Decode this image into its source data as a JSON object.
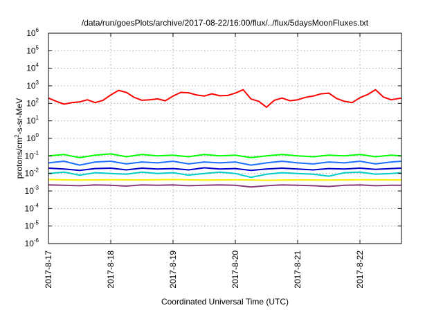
{
  "chart_data": {
    "type": "line",
    "title": "/data/run/goesPlots/archive/2017-08-22/16:00/flux/../flux/5daysMoonFluxes.txt",
    "xlabel": "Coordinated Universal Time (UTC)",
    "ylabel": {
      "prefix": "protons/cm",
      "sup": "2",
      "suffix": "-s-sr-MeV"
    },
    "yscale": "log",
    "ylim": [
      1e-06,
      1000000.0
    ],
    "y_ticks": [
      {
        "base": "10",
        "exp": "-6",
        "value": -6
      },
      {
        "base": "10",
        "exp": "-5",
        "value": -5
      },
      {
        "base": "10",
        "exp": "-4",
        "value": -4
      },
      {
        "base": "10",
        "exp": "-3",
        "value": -3
      },
      {
        "base": "10",
        "exp": "-2",
        "value": -2
      },
      {
        "base": "10",
        "exp": "-1",
        "value": -1
      },
      {
        "base": "10",
        "exp": "0",
        "value": 0
      },
      {
        "base": "10",
        "exp": "1",
        "value": 1
      },
      {
        "base": "10",
        "exp": "2",
        "value": 2
      },
      {
        "base": "10",
        "exp": "3",
        "value": 3
      },
      {
        "base": "10",
        "exp": "4",
        "value": 4
      },
      {
        "base": "10",
        "exp": "5",
        "value": 5
      },
      {
        "base": "10",
        "exp": "6",
        "value": 6
      }
    ],
    "xlim": [
      "2017-08-17T00:00",
      "2017-08-22T16:00"
    ],
    "x_ticks": [
      {
        "label": "2017-8-17",
        "date": "2017-08-17"
      },
      {
        "label": "2017-8-18",
        "date": "2017-08-18"
      },
      {
        "label": "2017-8-19",
        "date": "2017-08-19"
      },
      {
        "label": "2017-8-20",
        "date": "2017-08-20"
      },
      {
        "label": "2017-8-21",
        "date": "2017-08-21"
      },
      {
        "label": "2017-8-22",
        "date": "2017-08-22"
      }
    ],
    "grid": true,
    "series": [
      {
        "color": "#ff0000",
        "x": [
          "2017-08-17T00:00",
          "2017-08-17T03:00",
          "2017-08-17T06:00",
          "2017-08-17T09:00",
          "2017-08-17T12:00",
          "2017-08-17T15:00",
          "2017-08-17T18:00",
          "2017-08-17T21:00",
          "2017-08-18T00:00",
          "2017-08-18T03:00",
          "2017-08-18T06:00",
          "2017-08-18T09:00",
          "2017-08-18T12:00",
          "2017-08-18T15:00",
          "2017-08-18T18:00",
          "2017-08-18T21:00",
          "2017-08-19T00:00",
          "2017-08-19T03:00",
          "2017-08-19T06:00",
          "2017-08-19T09:00",
          "2017-08-19T12:00",
          "2017-08-19T15:00",
          "2017-08-19T18:00",
          "2017-08-19T21:00",
          "2017-08-20T00:00",
          "2017-08-20T03:00",
          "2017-08-20T06:00",
          "2017-08-20T09:00",
          "2017-08-20T12:00",
          "2017-08-20T15:00",
          "2017-08-20T18:00",
          "2017-08-20T21:00",
          "2017-08-21T00:00",
          "2017-08-21T03:00",
          "2017-08-21T06:00",
          "2017-08-21T09:00",
          "2017-08-21T12:00",
          "2017-08-21T15:00",
          "2017-08-21T18:00",
          "2017-08-21T21:00",
          "2017-08-22T00:00",
          "2017-08-22T03:00",
          "2017-08-22T06:00",
          "2017-08-22T09:00",
          "2017-08-22T12:00",
          "2017-08-22T16:00"
        ],
        "values": [
          200,
          130,
          90,
          110,
          120,
          160,
          110,
          150,
          300,
          550,
          420,
          220,
          150,
          160,
          180,
          140,
          260,
          420,
          400,
          300,
          260,
          350,
          270,
          280,
          380,
          600,
          180,
          130,
          60,
          150,
          200,
          140,
          160,
          220,
          260,
          350,
          380,
          190,
          130,
          110,
          210,
          320,
          600,
          230,
          160,
          200
        ]
      },
      {
        "color": "#00ff00",
        "x": [
          "2017-08-17T00:00",
          "2017-08-17T06:00",
          "2017-08-17T12:00",
          "2017-08-17T18:00",
          "2017-08-18T00:00",
          "2017-08-18T06:00",
          "2017-08-18T12:00",
          "2017-08-18T18:00",
          "2017-08-19T00:00",
          "2017-08-19T06:00",
          "2017-08-19T12:00",
          "2017-08-19T18:00",
          "2017-08-20T00:00",
          "2017-08-20T06:00",
          "2017-08-20T12:00",
          "2017-08-20T18:00",
          "2017-08-21T00:00",
          "2017-08-21T06:00",
          "2017-08-21T12:00",
          "2017-08-21T18:00",
          "2017-08-22T00:00",
          "2017-08-22T06:00",
          "2017-08-22T12:00",
          "2017-08-22T16:00"
        ],
        "values": [
          0.1,
          0.12,
          0.08,
          0.11,
          0.13,
          0.09,
          0.12,
          0.1,
          0.11,
          0.09,
          0.12,
          0.1,
          0.11,
          0.08,
          0.1,
          0.12,
          0.1,
          0.09,
          0.11,
          0.1,
          0.12,
          0.09,
          0.11,
          0.1
        ]
      },
      {
        "color": "#1a6fff",
        "x": [
          "2017-08-17T00:00",
          "2017-08-17T06:00",
          "2017-08-17T12:00",
          "2017-08-17T18:00",
          "2017-08-18T00:00",
          "2017-08-18T06:00",
          "2017-08-18T12:00",
          "2017-08-18T18:00",
          "2017-08-19T00:00",
          "2017-08-19T06:00",
          "2017-08-19T12:00",
          "2017-08-19T18:00",
          "2017-08-20T00:00",
          "2017-08-20T06:00",
          "2017-08-20T12:00",
          "2017-08-20T18:00",
          "2017-08-21T00:00",
          "2017-08-21T06:00",
          "2017-08-21T12:00",
          "2017-08-21T18:00",
          "2017-08-22T00:00",
          "2017-08-22T06:00",
          "2017-08-22T12:00",
          "2017-08-22T16:00"
        ],
        "values": [
          0.04,
          0.05,
          0.03,
          0.045,
          0.05,
          0.035,
          0.045,
          0.04,
          0.05,
          0.035,
          0.045,
          0.04,
          0.045,
          0.03,
          0.04,
          0.05,
          0.04,
          0.035,
          0.045,
          0.04,
          0.05,
          0.035,
          0.045,
          0.05
        ]
      },
      {
        "color": "#00cccc",
        "x": [
          "2017-08-17T00:00",
          "2017-08-17T06:00",
          "2017-08-17T12:00",
          "2017-08-17T18:00",
          "2017-08-18T00:00",
          "2017-08-18T06:00",
          "2017-08-18T12:00",
          "2017-08-18T18:00",
          "2017-08-19T00:00",
          "2017-08-19T06:00",
          "2017-08-19T12:00",
          "2017-08-19T18:00",
          "2017-08-20T00:00",
          "2017-08-20T06:00",
          "2017-08-20T12:00",
          "2017-08-20T18:00",
          "2017-08-21T00:00",
          "2017-08-21T06:00",
          "2017-08-21T12:00",
          "2017-08-21T18:00",
          "2017-08-22T00:00",
          "2017-08-22T06:00",
          "2017-08-22T12:00",
          "2017-08-22T16:00"
        ],
        "values": [
          0.01,
          0.012,
          0.008,
          0.011,
          0.01,
          0.009,
          0.012,
          0.01,
          0.011,
          0.008,
          0.01,
          0.012,
          0.01,
          0.006,
          0.009,
          0.011,
          0.01,
          0.009,
          0.007,
          0.011,
          0.012,
          0.009,
          0.01,
          0.011
        ]
      },
      {
        "color": "#0000cc",
        "x": [
          "2017-08-17T00:00",
          "2017-08-17T06:00",
          "2017-08-17T12:00",
          "2017-08-17T18:00",
          "2017-08-18T00:00",
          "2017-08-18T06:00",
          "2017-08-18T12:00",
          "2017-08-18T18:00",
          "2017-08-19T00:00",
          "2017-08-19T06:00",
          "2017-08-19T12:00",
          "2017-08-19T18:00",
          "2017-08-20T00:00",
          "2017-08-20T06:00",
          "2017-08-20T12:00",
          "2017-08-20T18:00",
          "2017-08-21T00:00",
          "2017-08-21T06:00",
          "2017-08-21T12:00",
          "2017-08-21T18:00",
          "2017-08-22T00:00",
          "2017-08-22T06:00",
          "2017-08-22T12:00",
          "2017-08-22T16:00"
        ],
        "values": [
          0.02,
          0.018,
          0.015,
          0.019,
          0.02,
          0.016,
          0.02,
          0.018,
          0.019,
          0.016,
          0.021,
          0.018,
          0.019,
          0.015,
          0.018,
          0.02,
          0.018,
          0.016,
          0.019,
          0.018,
          0.02,
          0.017,
          0.019,
          0.02
        ]
      },
      {
        "color": "#ffee00",
        "x": [
          "2017-08-17T00:00",
          "2017-08-17T12:00",
          "2017-08-18T00:00",
          "2017-08-18T12:00",
          "2017-08-19T00:00",
          "2017-08-19T12:00",
          "2017-08-20T00:00",
          "2017-08-20T12:00",
          "2017-08-21T00:00",
          "2017-08-21T12:00",
          "2017-08-22T00:00",
          "2017-08-22T16:00"
        ],
        "values": [
          0.0045,
          0.0042,
          0.0044,
          0.0043,
          0.0045,
          0.0042,
          0.0044,
          0.0041,
          0.0043,
          0.0042,
          0.0044,
          0.0043
        ]
      },
      {
        "color": "#8b3a7a",
        "x": [
          "2017-08-17T00:00",
          "2017-08-17T06:00",
          "2017-08-17T12:00",
          "2017-08-17T18:00",
          "2017-08-18T00:00",
          "2017-08-18T06:00",
          "2017-08-18T12:00",
          "2017-08-18T18:00",
          "2017-08-19T00:00",
          "2017-08-19T06:00",
          "2017-08-19T12:00",
          "2017-08-19T18:00",
          "2017-08-20T00:00",
          "2017-08-20T06:00",
          "2017-08-20T12:00",
          "2017-08-20T18:00",
          "2017-08-21T00:00",
          "2017-08-21T06:00",
          "2017-08-21T12:00",
          "2017-08-21T18:00",
          "2017-08-22T00:00",
          "2017-08-22T06:00",
          "2017-08-22T12:00",
          "2017-08-22T16:00"
        ],
        "values": [
          0.0022,
          0.0021,
          0.002,
          0.0022,
          0.0021,
          0.0019,
          0.0022,
          0.0021,
          0.0022,
          0.002,
          0.0021,
          0.0022,
          0.0021,
          0.0017,
          0.002,
          0.0022,
          0.0021,
          0.002,
          0.0018,
          0.0021,
          0.0022,
          0.002,
          0.0021,
          0.0021
        ]
      }
    ]
  }
}
